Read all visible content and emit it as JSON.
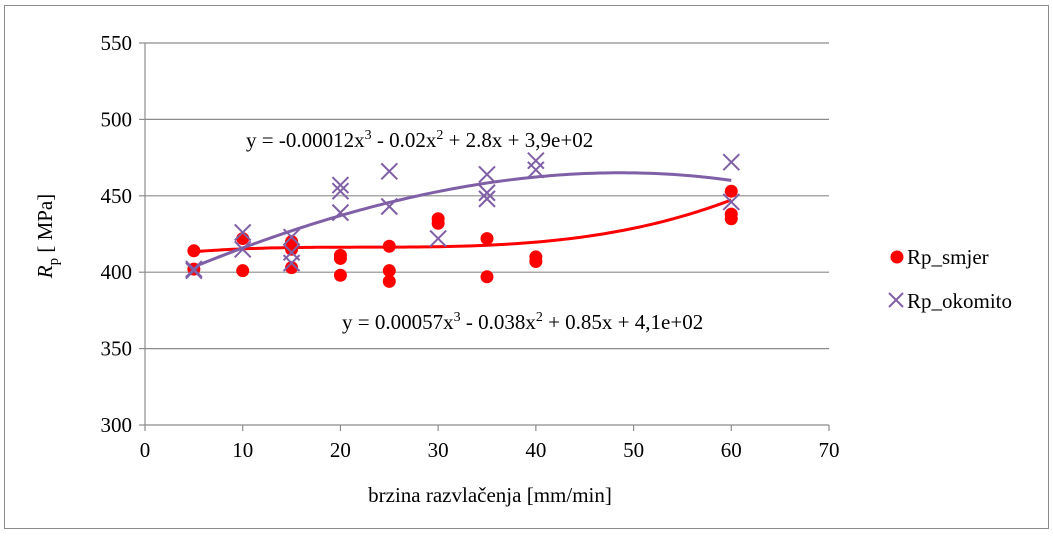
{
  "chart_data": {
    "type": "scatter",
    "xlabel": "brzina razvlačenja [mm/min]",
    "ylabel_main": "R",
    "ylabel_sub": "p",
    "ylabel_unit": " [ MPa]",
    "xlim": [
      0,
      70
    ],
    "ylim": [
      300,
      550
    ],
    "x_ticks": [
      0,
      10,
      20,
      30,
      40,
      50,
      60,
      70
    ],
    "y_ticks": [
      300,
      350,
      400,
      450,
      500,
      550
    ],
    "x_tick_labels": [
      "0",
      "10",
      "20",
      "30",
      "40",
      "50",
      "60",
      "70"
    ],
    "y_tick_labels": [
      "300",
      "350",
      "400",
      "450",
      "500",
      "550"
    ],
    "grid": "horizontal",
    "legend_position": "right",
    "series": [
      {
        "name": "Rp_smjer",
        "marker": "circle",
        "color": "#ff0000",
        "points": [
          [
            5,
            414
          ],
          [
            5,
            402
          ],
          [
            10,
            422
          ],
          [
            10,
            401
          ],
          [
            15,
            420
          ],
          [
            15,
            415
          ],
          [
            15,
            403
          ],
          [
            20,
            411
          ],
          [
            20,
            409
          ],
          [
            20,
            398
          ],
          [
            25,
            417
          ],
          [
            25,
            401
          ],
          [
            25,
            394
          ],
          [
            30,
            435
          ],
          [
            30,
            432
          ],
          [
            35,
            422
          ],
          [
            35,
            397
          ],
          [
            40,
            410
          ],
          [
            40,
            407
          ],
          [
            60,
            453
          ],
          [
            60,
            438
          ],
          [
            60,
            435
          ]
        ],
        "trendline": {
          "equation": "y = 0.00057x³ - 0.038x² + 0.85x + 4,1e+02",
          "eq_main": "y = 0.00057x",
          "eq_sup1": "3",
          "eq_mid": " - 0.038x",
          "eq_sup2": "2",
          "eq_tail": " + 0.85x + 4,1e+02",
          "coefficients": [
            0.00057,
            -0.038,
            0.85,
            410
          ],
          "domain": [
            5,
            60
          ],
          "color": "#ff0000"
        }
      },
      {
        "name": "Rp_okomito",
        "marker": "x",
        "color": "#7f5fa6",
        "points": [
          [
            5,
            402
          ],
          [
            5,
            401
          ],
          [
            10,
            426
          ],
          [
            10,
            415
          ],
          [
            15,
            423
          ],
          [
            15,
            413
          ],
          [
            15,
            406
          ],
          [
            20,
            457
          ],
          [
            20,
            453
          ],
          [
            20,
            439
          ],
          [
            25,
            466
          ],
          [
            25,
            443
          ],
          [
            30,
            422
          ],
          [
            35,
            464
          ],
          [
            35,
            452
          ],
          [
            35,
            448
          ],
          [
            40,
            473
          ],
          [
            40,
            467
          ],
          [
            60,
            472
          ],
          [
            60,
            446
          ]
        ],
        "trendline": {
          "equation": "y = -0.00012x³ - 0.02x² + 2.8x + 3,9e+02",
          "eq_main": "y = -0.00012x",
          "eq_sup1": "3",
          "eq_mid": " - 0.02x",
          "eq_sup2": "2",
          "eq_tail": " + 2.8x + 3,9e+02",
          "coefficients": [
            -0.00012,
            -0.02,
            2.8,
            390
          ],
          "domain": [
            5,
            60
          ],
          "color": "#7f5fa6"
        }
      }
    ]
  }
}
